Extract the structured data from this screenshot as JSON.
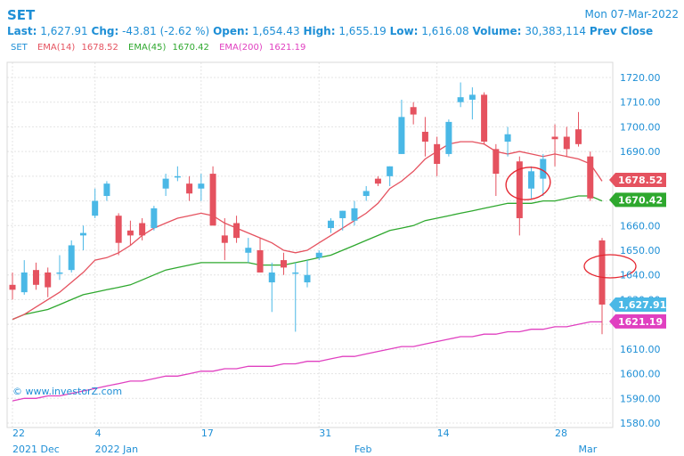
{
  "header": {
    "symbol": "SET",
    "date": "Mon 07-Mar-2022",
    "last_label": "Last:",
    "last": "1,627.91",
    "chg_label": "Chg:",
    "chg": "-43.81 (-2.62 %)",
    "open_label": "Open:",
    "open": "1,654.43",
    "high_label": "High:",
    "high": "1,655.19",
    "low_label": "Low:",
    "low": "1,616.08",
    "volume_label": "Volume:",
    "volume": "30,383,114",
    "prev_label": "Prev Close"
  },
  "indicators": {
    "set": "SET",
    "ema14_label": "EMA(14)",
    "ema14_value": "1678.52",
    "ema45_label": "EMA(45)",
    "ema45_value": "1670.42",
    "ema200_label": "EMA(200)",
    "ema200_value": "1621.19"
  },
  "watermark": "© www.investorZ.com",
  "colors": {
    "up": "#4ab8e6",
    "down": "#e5525f",
    "ema14": "#e5525f",
    "ema45": "#2ea82e",
    "ema200": "#e040c0",
    "accent": "#1e8fd6"
  },
  "chart_data": {
    "type": "candlestick",
    "ylim": [
      1580,
      1725
    ],
    "yticks": [
      1580,
      1590,
      1600,
      1610,
      1620,
      1630,
      1640,
      1650,
      1660,
      1670,
      1680,
      1690,
      1700,
      1710,
      1720
    ],
    "x_labels": [
      {
        "i": 0,
        "label": "22",
        "sub": "2021 Dec"
      },
      {
        "i": 7,
        "label": "4",
        "sub": "2022 Jan"
      },
      {
        "i": 16,
        "label": "17",
        "sub": ""
      },
      {
        "i": 26,
        "label": "31",
        "sub": ""
      },
      {
        "i": 29,
        "label": "",
        "sub": "Feb"
      },
      {
        "i": 36,
        "label": "14",
        "sub": ""
      },
      {
        "i": 46,
        "label": "28",
        "sub": ""
      },
      {
        "i": 48,
        "label": "",
        "sub": "Mar"
      }
    ],
    "candles": [
      {
        "o": 1636,
        "h": 1641,
        "l": 1630,
        "c": 1634
      },
      {
        "o": 1633,
        "h": 1646,
        "l": 1632,
        "c": 1641
      },
      {
        "o": 1642,
        "h": 1645,
        "l": 1634,
        "c": 1636
      },
      {
        "o": 1641,
        "h": 1643,
        "l": 1631,
        "c": 1635
      },
      {
        "o": 1641,
        "h": 1648,
        "l": 1638,
        "c": 1641
      },
      {
        "o": 1642,
        "h": 1654,
        "l": 1641,
        "c": 1652
      },
      {
        "o": 1656,
        "h": 1660,
        "l": 1650,
        "c": 1657
      },
      {
        "o": 1664,
        "h": 1675,
        "l": 1663,
        "c": 1670
      },
      {
        "o": 1672,
        "h": 1678,
        "l": 1670,
        "c": 1677
      },
      {
        "o": 1664,
        "h": 1665,
        "l": 1648,
        "c": 1653
      },
      {
        "o": 1658,
        "h": 1662,
        "l": 1652,
        "c": 1656
      },
      {
        "o": 1661,
        "h": 1663,
        "l": 1654,
        "c": 1656
      },
      {
        "o": 1659,
        "h": 1668,
        "l": 1658,
        "c": 1667
      },
      {
        "o": 1675,
        "h": 1681,
        "l": 1672,
        "c": 1679
      },
      {
        "o": 1680,
        "h": 1684,
        "l": 1678,
        "c": 1680
      },
      {
        "o": 1677,
        "h": 1680,
        "l": 1670,
        "c": 1673
      },
      {
        "o": 1675,
        "h": 1681,
        "l": 1670,
        "c": 1677
      },
      {
        "o": 1681,
        "h": 1684,
        "l": 1660,
        "c": 1660
      },
      {
        "o": 1656,
        "h": 1663,
        "l": 1646,
        "c": 1653
      },
      {
        "o": 1661,
        "h": 1664,
        "l": 1653,
        "c": 1655
      },
      {
        "o": 1649,
        "h": 1655,
        "l": 1645,
        "c": 1651
      },
      {
        "o": 1650,
        "h": 1655,
        "l": 1641,
        "c": 1641
      },
      {
        "o": 1637,
        "h": 1645,
        "l": 1625,
        "c": 1641
      },
      {
        "o": 1646,
        "h": 1649,
        "l": 1640,
        "c": 1643
      },
      {
        "o": 1641,
        "h": 1645,
        "l": 1617,
        "c": 1641
      },
      {
        "o": 1637,
        "h": 1646,
        "l": 1635,
        "c": 1640
      },
      {
        "o": 1647,
        "h": 1650,
        "l": 1646,
        "c": 1649
      },
      {
        "o": 1659,
        "h": 1663,
        "l": 1657,
        "c": 1662
      },
      {
        "o": 1663,
        "h": 1666,
        "l": 1658,
        "c": 1666
      },
      {
        "o": 1662,
        "h": 1670,
        "l": 1660,
        "c": 1667
      },
      {
        "o": 1672,
        "h": 1676,
        "l": 1670,
        "c": 1674
      },
      {
        "o": 1679,
        "h": 1680,
        "l": 1676,
        "c": 1677
      },
      {
        "o": 1680,
        "h": 1684,
        "l": 1676,
        "c": 1684
      },
      {
        "o": 1689,
        "h": 1711,
        "l": 1689,
        "c": 1704
      },
      {
        "o": 1708,
        "h": 1710,
        "l": 1701,
        "c": 1705
      },
      {
        "o": 1698,
        "h": 1704,
        "l": 1688,
        "c": 1694
      },
      {
        "o": 1693,
        "h": 1696,
        "l": 1680,
        "c": 1685
      },
      {
        "o": 1689,
        "h": 1703,
        "l": 1688,
        "c": 1702
      },
      {
        "o": 1710,
        "h": 1718,
        "l": 1708,
        "c": 1712
      },
      {
        "o": 1711,
        "h": 1716,
        "l": 1703,
        "c": 1713
      },
      {
        "o": 1713,
        "h": 1714,
        "l": 1693,
        "c": 1694
      },
      {
        "o": 1691,
        "h": 1693,
        "l": 1672,
        "c": 1681
      },
      {
        "o": 1694,
        "h": 1700,
        "l": 1688,
        "c": 1697
      },
      {
        "o": 1686,
        "h": 1688,
        "l": 1656,
        "c": 1663
      },
      {
        "o": 1675,
        "h": 1684,
        "l": 1671,
        "c": 1682
      },
      {
        "o": 1679,
        "h": 1689,
        "l": 1672,
        "c": 1687
      },
      {
        "o": 1696,
        "h": 1701,
        "l": 1684,
        "c": 1695
      },
      {
        "o": 1696,
        "h": 1700,
        "l": 1688,
        "c": 1691
      },
      {
        "o": 1699,
        "h": 1706,
        "l": 1692,
        "c": 1693
      },
      {
        "o": 1688,
        "h": 1690,
        "l": 1670,
        "c": 1671
      },
      {
        "o": 1654,
        "h": 1655,
        "l": 1616,
        "c": 1628
      }
    ],
    "ema14": [
      1622,
      1624,
      1627,
      1630,
      1633,
      1637,
      1641,
      1646,
      1647,
      1649,
      1652,
      1656,
      1659,
      1661,
      1663,
      1664,
      1665,
      1664,
      1661,
      1659,
      1657,
      1655,
      1653,
      1650,
      1649,
      1650,
      1653,
      1656,
      1659,
      1662,
      1665,
      1669,
      1675,
      1678,
      1682,
      1687,
      1690,
      1693,
      1694,
      1694,
      1693,
      1690,
      1689,
      1690,
      1689,
      1688,
      1689,
      1688,
      1687,
      1685,
      1678
    ],
    "ema45": [
      1622,
      1624,
      1625,
      1626,
      1628,
      1630,
      1632,
      1633,
      1634,
      1635,
      1636,
      1638,
      1640,
      1642,
      1643,
      1644,
      1645,
      1645,
      1645,
      1645,
      1645,
      1644,
      1644,
      1644,
      1645,
      1646,
      1647,
      1648,
      1650,
      1652,
      1654,
      1656,
      1658,
      1659,
      1660,
      1662,
      1663,
      1664,
      1665,
      1666,
      1667,
      1668,
      1669,
      1669,
      1669,
      1670,
      1670,
      1671,
      1672,
      1672,
      1670
    ],
    "ema200": [
      1589,
      1590,
      1590,
      1591,
      1591,
      1592,
      1593,
      1594,
      1595,
      1596,
      1597,
      1597,
      1598,
      1599,
      1599,
      1600,
      1601,
      1601,
      1602,
      1602,
      1603,
      1603,
      1603,
      1604,
      1604,
      1605,
      1605,
      1606,
      1607,
      1607,
      1608,
      1609,
      1610,
      1611,
      1611,
      1612,
      1613,
      1614,
      1615,
      1615,
      1616,
      1616,
      1617,
      1617,
      1618,
      1618,
      1619,
      1619,
      1620,
      1621,
      1621
    ]
  }
}
